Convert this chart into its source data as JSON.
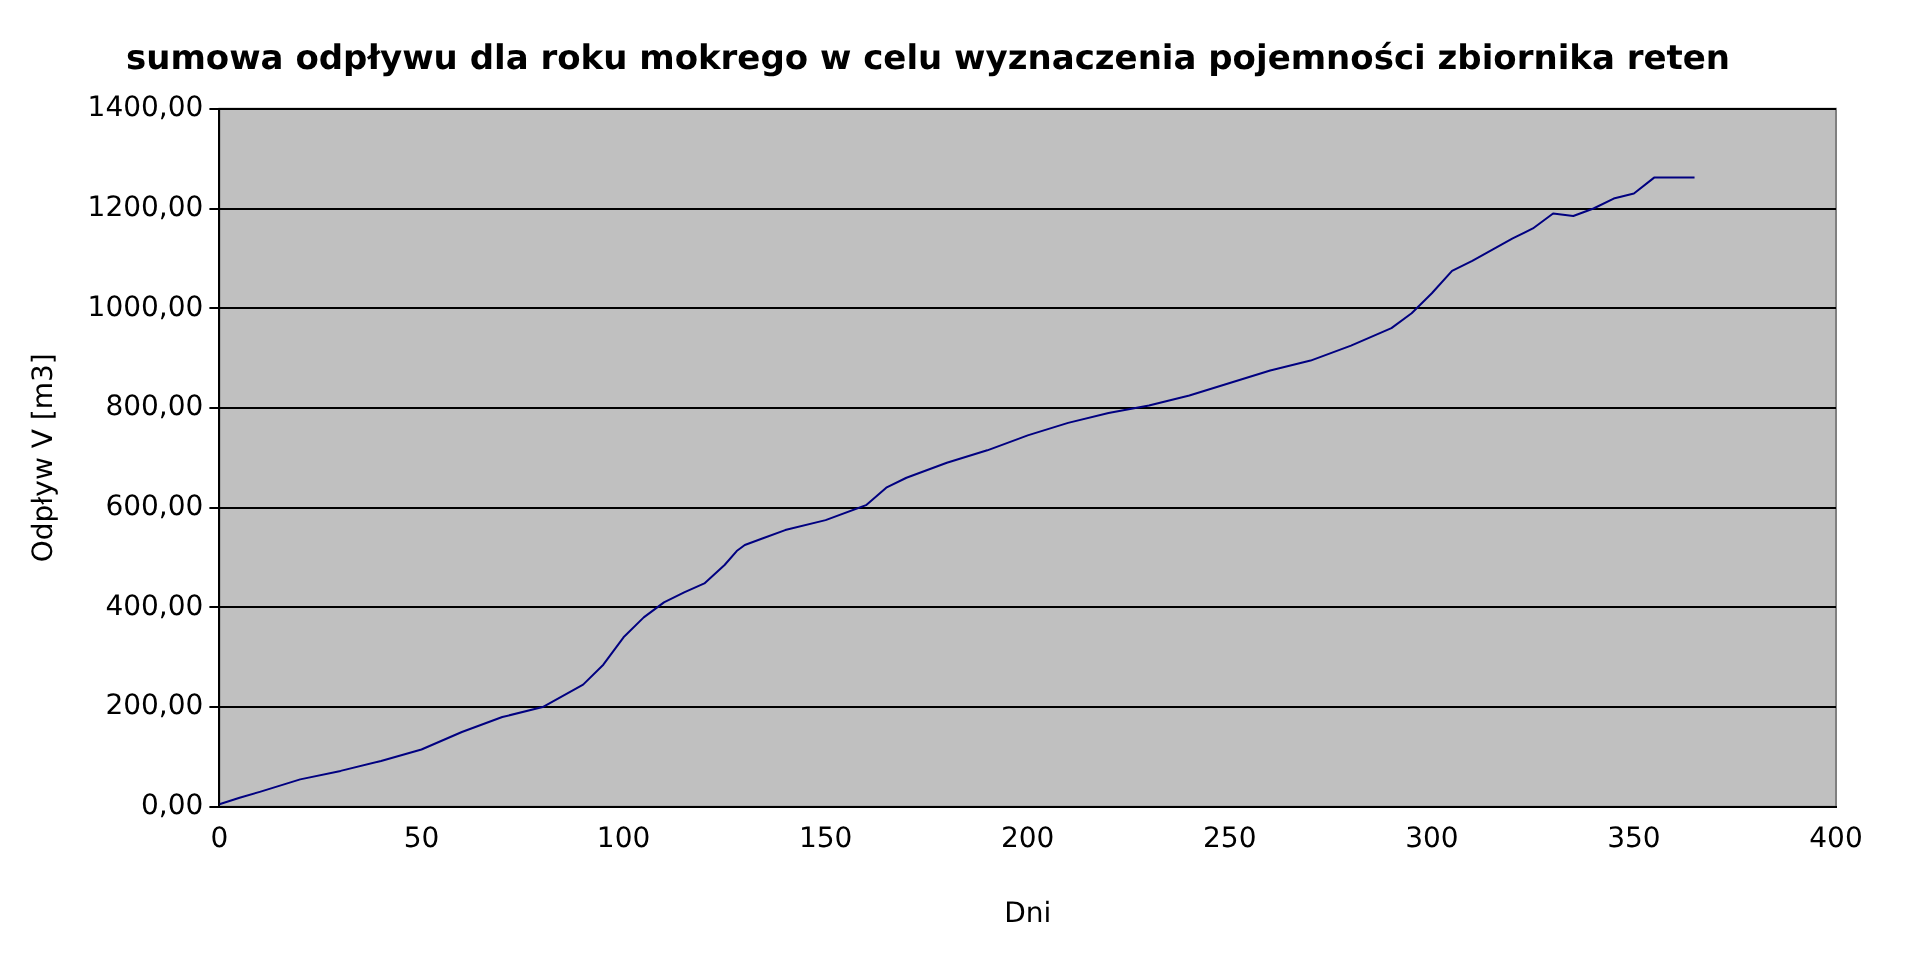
{
  "chart_data": {
    "type": "line",
    "title": "sumowa odpływu dla roku mokrego w celu wyznaczenia pojemności zbiornika reten",
    "xlabel": "Dni",
    "ylabel": "Odpływ V [m3]",
    "x": [
      0,
      5,
      10,
      20,
      30,
      40,
      50,
      60,
      70,
      80,
      90,
      95,
      100,
      105,
      110,
      115,
      120,
      125,
      128,
      130,
      140,
      150,
      160,
      165,
      170,
      180,
      190,
      200,
      210,
      220,
      230,
      240,
      250,
      260,
      270,
      280,
      290,
      295,
      300,
      305,
      310,
      320,
      325,
      330,
      335,
      340,
      345,
      350,
      355,
      365
    ],
    "series": [
      {
        "color": "#000080",
        "values": [
          5,
          18,
          30,
          55,
          72,
          92,
          115,
          150,
          180,
          200,
          245,
          285,
          340,
          380,
          410,
          430,
          448,
          485,
          513,
          525,
          555,
          575,
          605,
          640,
          660,
          690,
          715,
          745,
          770,
          790,
          805,
          825,
          850,
          875,
          895,
          925,
          960,
          990,
          1030,
          1075,
          1095,
          1140,
          1160,
          1190,
          1185,
          1200,
          1220,
          1230,
          1262,
          1262
        ]
      }
    ],
    "xlim": [
      0,
      400
    ],
    "xticks": [
      0,
      50,
      100,
      150,
      200,
      250,
      300,
      350,
      400
    ],
    "ylim": [
      0,
      1400
    ],
    "yticks": [
      {
        "value": 0,
        "label": "0,00"
      },
      {
        "value": 200,
        "label": "200,00"
      },
      {
        "value": 400,
        "label": "400,00"
      },
      {
        "value": 600,
        "label": "600,00"
      },
      {
        "value": 800,
        "label": "800,00"
      },
      {
        "value": 1000,
        "label": "1000,00"
      },
      {
        "value": 1200,
        "label": "1200,00"
      },
      {
        "value": 1400,
        "label": "1400,00"
      }
    ],
    "grid": "y",
    "legend": false,
    "marker": "none",
    "line_style": "solid"
  }
}
